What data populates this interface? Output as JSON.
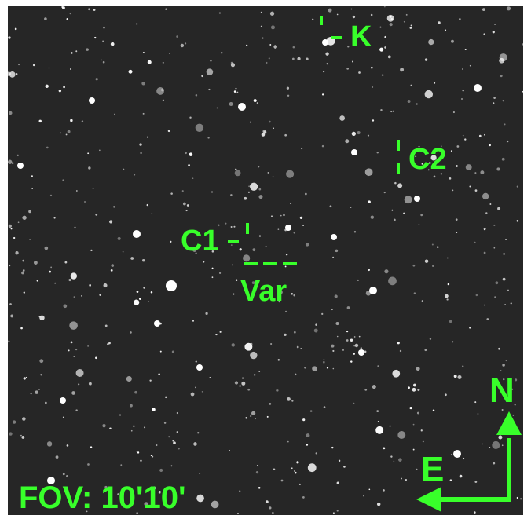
{
  "image": {
    "background_color": "#262626",
    "marker_color": "#38ff2a",
    "star_color": "#ffffff"
  },
  "labels": {
    "check_star": "K",
    "comparison_1": "C1",
    "comparison_2": "C2",
    "variable": "Var",
    "field_of_view": "FOV: 10'10'",
    "compass_north": "N",
    "compass_east": "E"
  }
}
